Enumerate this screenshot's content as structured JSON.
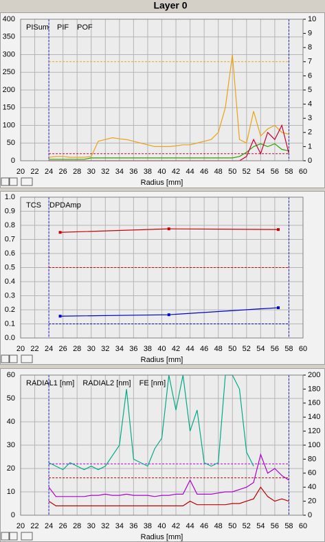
{
  "title": "Layer 0",
  "chart_data": [
    {
      "type": "line",
      "xlabel": "Radius [mm]",
      "x": [
        24,
        25,
        26,
        27,
        28,
        29,
        30,
        31,
        32,
        33,
        34,
        35,
        36,
        37,
        38,
        39,
        40,
        41,
        42,
        43,
        44,
        45,
        46,
        47,
        48,
        49,
        50,
        51,
        52,
        53,
        54,
        55,
        56,
        57,
        58
      ],
      "xlim": [
        20,
        60
      ],
      "xticks": [
        20,
        22,
        24,
        26,
        28,
        30,
        32,
        34,
        36,
        38,
        40,
        42,
        44,
        46,
        48,
        50,
        52,
        54,
        56,
        58,
        60
      ],
      "ylim": [
        0,
        400
      ],
      "yticks": [
        0,
        50,
        100,
        150,
        200,
        250,
        300,
        350,
        400
      ],
      "y2lim": [
        0,
        10
      ],
      "y2ticks": [
        0,
        1,
        2,
        3,
        4,
        5,
        6,
        7,
        8,
        9,
        10
      ],
      "grid": true,
      "vlines": [
        24,
        58
      ],
      "vline_color": "#2222cc",
      "reference_lines": [
        {
          "value": 280,
          "color": "#e8a317"
        },
        {
          "value": 20,
          "color": "#cc0033"
        }
      ],
      "series": [
        {
          "name": "PISum",
          "color": "#e8a317",
          "values": [
            10,
            12,
            12,
            10,
            10,
            10,
            12,
            55,
            60,
            65,
            62,
            60,
            55,
            50,
            45,
            40,
            40,
            40,
            42,
            45,
            45,
            50,
            55,
            60,
            80,
            150,
            300,
            60,
            50,
            140,
            70,
            90,
            100,
            80,
            75
          ]
        },
        {
          "name": "PIF",
          "color": "#2ca000",
          "axis": "y2",
          "values": [
            0.1,
            0.1,
            0.1,
            0.1,
            0.1,
            0.1,
            0.2,
            0.2,
            0.2,
            0.2,
            0.2,
            0.2,
            0.2,
            0.2,
            0.2,
            0.2,
            0.2,
            0.2,
            0.2,
            0.2,
            0.2,
            0.2,
            0.2,
            0.2,
            0.2,
            0.2,
            0.2,
            0.3,
            0.6,
            1.0,
            1.2,
            1.0,
            1.2,
            0.8,
            0.7
          ]
        },
        {
          "name": "POF",
          "color": "#cc0033",
          "axis": "y2",
          "values": [
            0,
            0,
            0,
            0,
            0,
            0,
            0,
            0,
            0,
            0,
            0,
            0,
            0,
            0,
            0,
            0,
            0,
            0,
            0,
            0,
            0,
            0,
            0,
            0,
            0,
            0,
            0,
            0,
            0.3,
            1.5,
            0.5,
            2.0,
            1.5,
            2.5,
            0.5
          ]
        }
      ]
    },
    {
      "type": "line",
      "xlabel": "Radius [mm]",
      "x": [
        25.6,
        41,
        56.5
      ],
      "xlim": [
        20,
        60
      ],
      "xticks": [
        20,
        22,
        24,
        26,
        28,
        30,
        32,
        34,
        36,
        38,
        40,
        42,
        44,
        46,
        48,
        50,
        52,
        54,
        56,
        58,
        60
      ],
      "ylim": [
        0,
        1
      ],
      "yticks": [
        {
          "value": 0,
          "label": "0.0"
        },
        0.1,
        0.2,
        0.3,
        0.4,
        0.5,
        0.6,
        0.7,
        0.8,
        0.9,
        {
          "value": 1,
          "label": "1.0"
        }
      ],
      "grid": true,
      "markers": true,
      "vlines": [
        24,
        58
      ],
      "vline_color": "#2222cc",
      "reference_lines": [
        {
          "value": 0.5,
          "color": "#cc0000"
        },
        {
          "value": 0.1,
          "color": "#0000cc"
        }
      ],
      "series": [
        {
          "name": "TCS",
          "color": "#0000cc",
          "values": [
            0.155,
            0.165,
            0.215
          ]
        },
        {
          "name": "DPDAmp",
          "color": "#cc0000",
          "values": [
            0.75,
            0.775,
            0.77
          ]
        }
      ]
    },
    {
      "type": "line",
      "xlabel": "Radius [mm]",
      "x": [
        24,
        25,
        26,
        27,
        28,
        29,
        30,
        31,
        32,
        33,
        34,
        35,
        36,
        37,
        38,
        39,
        40,
        41,
        42,
        43,
        44,
        45,
        46,
        47,
        48,
        49,
        50,
        51,
        52,
        53,
        54,
        55,
        56,
        57,
        58
      ],
      "xlim": [
        20,
        60
      ],
      "xticks": [
        20,
        22,
        24,
        26,
        28,
        30,
        32,
        34,
        36,
        38,
        40,
        42,
        44,
        46,
        48,
        50,
        52,
        54,
        56,
        58,
        60
      ],
      "ylim": [
        0,
        60
      ],
      "yticks": [
        0,
        10,
        20,
        30,
        40,
        50,
        60
      ],
      "y2lim": [
        0,
        200
      ],
      "y2ticks": [
        0,
        20,
        40,
        60,
        80,
        100,
        120,
        140,
        160,
        180,
        200
      ],
      "grid": true,
      "vlines": [
        24,
        58
      ],
      "vline_color": "#2222cc",
      "reference_lines": [
        {
          "value": 22,
          "color": "#aa00cc"
        },
        {
          "value": 16,
          "color": "#bb0000"
        }
      ],
      "series": [
        {
          "name": "RADIAL1 [nm]",
          "color": "#aa00cc",
          "values": [
            12,
            8,
            8,
            8,
            8,
            8,
            8.5,
            8.5,
            9,
            8.5,
            8.5,
            9,
            8.5,
            8.5,
            8.5,
            8,
            8.5,
            8.5,
            9,
            9,
            15,
            9,
            9,
            9,
            9.5,
            10,
            10,
            11,
            12,
            14,
            26,
            18,
            20,
            17,
            15
          ]
        },
        {
          "name": "RADIAL2 [nm]",
          "color": "#bb0000",
          "values": [
            6,
            4,
            4,
            4,
            4,
            4,
            4,
            4,
            4,
            4,
            4,
            4,
            4,
            4,
            4,
            4,
            4,
            4,
            4,
            4,
            6,
            4.5,
            4.5,
            4.5,
            4.5,
            4.5,
            5,
            5,
            6,
            7,
            12,
            8,
            6,
            7,
            6
          ]
        },
        {
          "name": "FE [nm]",
          "color": "#00aa88",
          "axis": "y2",
          "values": [
            75,
            70,
            65,
            75,
            70,
            65,
            70,
            65,
            70,
            85,
            100,
            180,
            80,
            75,
            70,
            95,
            110,
            200,
            150,
            200,
            120,
            150,
            75,
            70,
            75,
            200,
            200,
            180,
            90,
            70,
            null,
            null,
            null,
            null,
            null
          ]
        }
      ]
    }
  ]
}
